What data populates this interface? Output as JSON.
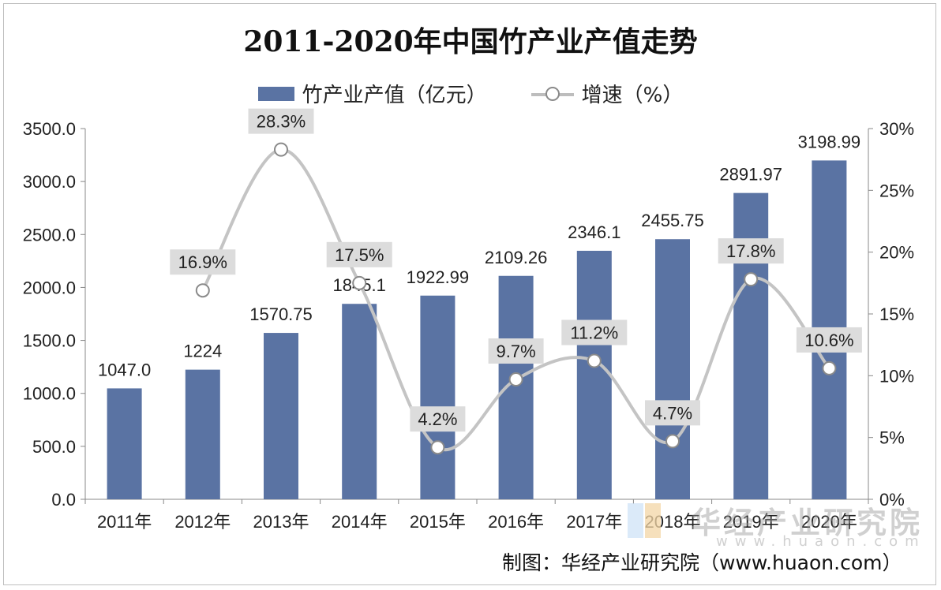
{
  "chart_data": {
    "type": "bar",
    "title": "2011-2020年中国竹产业产值走势",
    "categories": [
      "2011年",
      "2012年",
      "2013年",
      "2014年",
      "2015年",
      "2016年",
      "2017年",
      "2018年",
      "2019年",
      "2020年"
    ],
    "series": [
      {
        "name": "竹产业产值（亿元）",
        "type": "bar",
        "axis": "left",
        "values": [
          1047.0,
          1224,
          1570.75,
          1845.1,
          1922.99,
          2109.26,
          2346.1,
          2455.75,
          2891.97,
          3198.99
        ],
        "labels": [
          "1047.0",
          "1224",
          "1570.75",
          "1845.1",
          "1922.99",
          "2109.26",
          "2346.1",
          "2455.75",
          "2891.97",
          "3198.99"
        ]
      },
      {
        "name": "增速（%）",
        "type": "line",
        "axis": "right",
        "values": [
          null,
          16.9,
          28.3,
          17.5,
          4.2,
          9.7,
          11.2,
          4.7,
          17.8,
          10.6
        ],
        "labels": [
          null,
          "16.9%",
          "28.3%",
          "17.5%",
          "4.2%",
          "9.7%",
          "11.2%",
          "4.7%",
          "17.8%",
          "10.6%"
        ]
      }
    ],
    "y_left": {
      "min": 0,
      "max": 3500,
      "ticks": [
        "0.0",
        "500.0",
        "1000.0",
        "1500.0",
        "2000.0",
        "2500.0",
        "3000.0",
        "3500.0"
      ]
    },
    "y_right": {
      "min": 0,
      "max": 30,
      "ticks": [
        "0%",
        "5%",
        "10%",
        "15%",
        "20%",
        "25%",
        "30%"
      ]
    },
    "grid": false,
    "legend_position": "top-center",
    "colors": {
      "bar": "#5a73a3",
      "line": "#c4c4c4",
      "marker_stroke": "#8a8a8a",
      "label_box": "#dcdcdc"
    }
  },
  "source": "制图：华经产业研究院（www.huaon.com）",
  "watermark": {
    "text": "华经产业研究院",
    "url": "www.huaon.com"
  }
}
